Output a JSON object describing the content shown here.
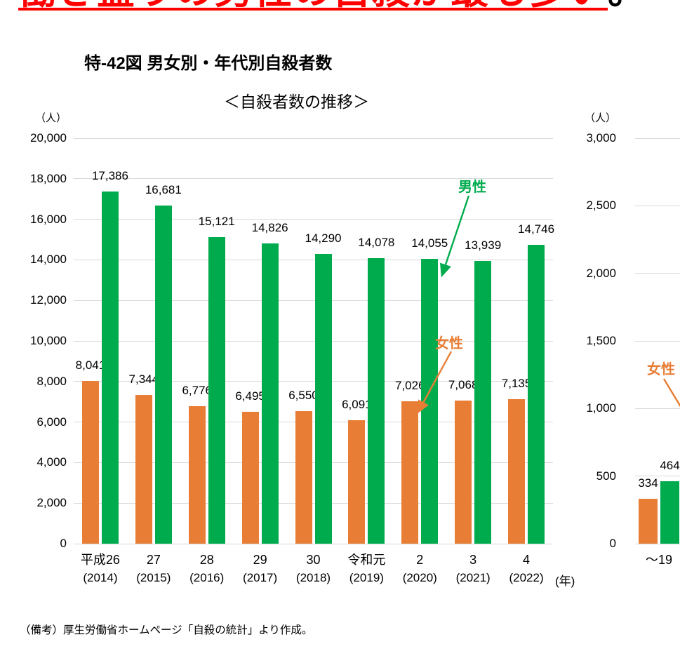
{
  "page": {
    "headline_red": "働き盛りの男性の自殺が最も多い",
    "headline_period": "。",
    "figure_title": "特-42図 男女別・年代別自殺者数",
    "note": "（備考）厚生労働省ホームページ「自殺の統計」より作成。"
  },
  "colors": {
    "male_green": "#00AB4E",
    "female_orange": "#E87E35",
    "headline_red": "#FF0000",
    "gridline": "#D9D9D9",
    "text": "#000000"
  },
  "chart_data": [
    {
      "id": "suicide-trend",
      "type": "bar",
      "title": "＜自殺者数の推移＞",
      "unit_label": "（人）",
      "ylabel": "（人）",
      "xlabel": "",
      "ylim": [
        0,
        20000
      ],
      "ytick_step": 2000,
      "grid": true,
      "legend_position": "inline-annotations",
      "categories": [
        "平成26",
        "27",
        "28",
        "29",
        "30",
        "令和元",
        "2",
        "3",
        "4"
      ],
      "categories_sub": [
        "(2014)",
        "(2015)",
        "(2016)",
        "(2017)",
        "(2018)",
        "(2019)",
        "(2020)",
        "(2021)",
        "(2022)"
      ],
      "x_axis_suffix": "(年)",
      "series": [
        {
          "name": "女性",
          "color": "#E87E35",
          "values": [
            8041,
            7344,
            6776,
            6495,
            6550,
            6091,
            7026,
            7068,
            7135
          ]
        },
        {
          "name": "男性",
          "color": "#00AB4E",
          "values": [
            17386,
            16681,
            15121,
            14826,
            14290,
            14078,
            14055,
            13939,
            14746
          ]
        }
      ],
      "annotations": [
        {
          "text": "男性",
          "color": "#00AB4E"
        },
        {
          "text": "女性",
          "color": "#E87E35"
        }
      ]
    },
    {
      "id": "suicide-by-age",
      "type": "bar",
      "unit_label": "（人）",
      "ylabel": "（人）",
      "xlabel": "",
      "ylim": [
        0,
        3000
      ],
      "ytick_step": 500,
      "grid": true,
      "categories": [
        "～19"
      ],
      "categories_sub": [
        ""
      ],
      "series": [
        {
          "name": "女性",
          "color": "#E87E35",
          "values": [
            334
          ]
        },
        {
          "name": "男性",
          "color": "#00AB4E",
          "values": [
            464
          ]
        }
      ],
      "annotations": [
        {
          "text": "女性",
          "color": "#E87E35"
        }
      ]
    }
  ]
}
